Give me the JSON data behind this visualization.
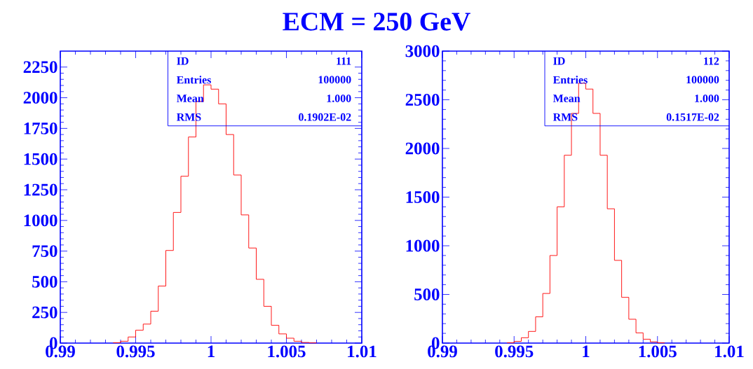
{
  "chart_data": [
    {
      "type": "histogram",
      "title": "ECM = 250 GeV",
      "color": "#ff0000",
      "bins": [
        0.9935,
        0.994,
        0.9945,
        0.995,
        0.9955,
        0.996,
        0.9965,
        0.997,
        0.9975,
        0.998,
        0.9985,
        0.999,
        0.9995,
        1,
        1.0005,
        1.001,
        1.0015,
        1.002,
        1.0025,
        1.003,
        1.0035,
        1.004,
        1.0045,
        1.005,
        1.0055,
        1.006,
        1.0065,
        1.007
      ],
      "values": [
        3,
        15,
        50,
        105,
        155,
        260,
        465,
        755,
        1065,
        1360,
        1680,
        1970,
        2105,
        2070,
        1950,
        1700,
        1370,
        1045,
        775,
        520,
        300,
        145,
        75,
        40,
        15,
        5,
        2
      ],
      "xlim": [
        0.99,
        1.01
      ],
      "ylim": [
        0,
        2380
      ],
      "xticks": [
        0.99,
        0.995,
        1,
        1.005,
        1.01
      ],
      "yticks": [
        0,
        250,
        500,
        750,
        1000,
        1250,
        1500,
        1750,
        2000,
        2250
      ],
      "annotations": [
        "ID",
        "111",
        "Entries",
        "100000",
        "Mean",
        "1.000",
        "RMS",
        "0.1902E-02"
      ]
    },
    {
      "type": "histogram",
      "color": "#ff0000",
      "bins": [
        0.9945,
        0.995,
        0.9955,
        0.996,
        0.9965,
        0.997,
        0.9975,
        0.998,
        0.9985,
        0.999,
        0.9995,
        1,
        1.0005,
        1.001,
        1.0015,
        1.002,
        1.0025,
        1.003,
        1.0035,
        1.004,
        1.0045,
        1.005,
        1.0055
      ],
      "values": [
        3,
        18,
        55,
        120,
        270,
        510,
        900,
        1400,
        1930,
        2360,
        2670,
        2610,
        2360,
        1930,
        1380,
        850,
        470,
        245,
        105,
        40,
        13,
        3
      ],
      "xlim": [
        0.99,
        1.01
      ],
      "ylim": [
        0,
        3000
      ],
      "xticks": [
        0.99,
        0.995,
        1,
        1.005,
        1.01
      ],
      "yticks": [
        0,
        500,
        1000,
        1500,
        2000,
        2500,
        3000
      ],
      "annotations": [
        "ID",
        "112",
        "Entries",
        "100000",
        "Mean",
        "1.000",
        "RMS",
        "0.1517E-02"
      ]
    }
  ]
}
